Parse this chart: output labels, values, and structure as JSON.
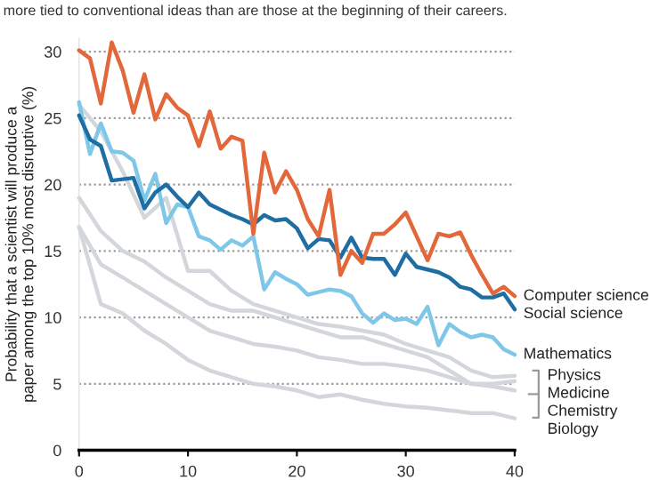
{
  "chart_data": {
    "type": "line",
    "subtitle": "more tied to conventional ideas than are those at the beginning of their careers.",
    "ylabel": "Probability that a scientist will produce a\npaper among the top 10% most disruptive (%)",
    "xlim": [
      0,
      40
    ],
    "xticks": [
      0,
      10,
      20,
      30,
      40
    ],
    "ylim": [
      0,
      31
    ],
    "yticks": [
      0,
      5,
      10,
      15,
      20,
      25,
      30
    ],
    "grid": "y",
    "legend": false,
    "marker": "none",
    "line_style": "solid",
    "series": [
      {
        "name": "Physics",
        "color": "#d3d7dc",
        "x": [
          0,
          2,
          4,
          6,
          8,
          10,
          12,
          14,
          16,
          18,
          20,
          22,
          24,
          26,
          28,
          30,
          32,
          34,
          36,
          38,
          40
        ],
        "values": [
          26,
          24,
          21,
          17.5,
          19,
          13.5,
          13.5,
          12,
          11,
          10.5,
          10,
          9.5,
          9.3,
          9,
          8.7,
          8,
          7.5,
          7,
          6,
          5.5,
          5.6
        ]
      },
      {
        "name": "Medicine",
        "color": "#d3d7dc",
        "x": [
          0,
          2,
          4,
          6,
          8,
          10,
          12,
          14,
          16,
          18,
          20,
          22,
          24,
          26,
          28,
          30,
          32,
          34,
          36,
          38,
          40
        ],
        "values": [
          19,
          16.5,
          15,
          14.2,
          13,
          12,
          11,
          10.5,
          10.5,
          10,
          9.5,
          9,
          8.5,
          8.5,
          8,
          7.5,
          7,
          6,
          5,
          5,
          5.2
        ]
      },
      {
        "name": "Chemistry",
        "color": "#d3d7dc",
        "x": [
          0,
          2,
          4,
          6,
          8,
          10,
          12,
          14,
          16,
          18,
          20,
          22,
          24,
          26,
          28,
          30,
          32,
          34,
          36,
          38,
          40
        ],
        "values": [
          16.8,
          14,
          13,
          12,
          11,
          10,
          9,
          8.5,
          8,
          7.8,
          7.5,
          7,
          6.8,
          6.5,
          6.5,
          6.3,
          6,
          5.5,
          5,
          4.8,
          4.5
        ]
      },
      {
        "name": "Biology",
        "color": "#d3d7dc",
        "x": [
          0,
          2,
          4,
          6,
          8,
          10,
          12,
          14,
          16,
          18,
          20,
          22,
          24,
          26,
          28,
          30,
          32,
          34,
          36,
          38,
          40
        ],
        "values": [
          16.8,
          11,
          10.3,
          9,
          8,
          6.8,
          6,
          5.5,
          5,
          4.8,
          4.5,
          4,
          4.2,
          3.8,
          3.5,
          3.3,
          3.2,
          3,
          2.8,
          2.8,
          2.4
        ]
      },
      {
        "name": "Mathematics",
        "color": "#7fc7e8",
        "x": [
          0,
          1,
          2,
          3,
          4,
          5,
          6,
          7,
          8,
          9,
          10,
          11,
          12,
          13,
          14,
          15,
          16,
          17,
          18,
          19,
          20,
          21,
          22,
          23,
          24,
          25,
          26,
          27,
          28,
          29,
          30,
          31,
          32,
          33,
          34,
          35,
          36,
          37,
          38,
          39,
          40
        ],
        "values": [
          26.2,
          22.3,
          24.6,
          22.5,
          22.4,
          21.8,
          18.8,
          20.8,
          17.1,
          18.5,
          18.3,
          16.1,
          15.8,
          15.1,
          15.8,
          15.4,
          16.1,
          12.1,
          13.4,
          12.9,
          12.5,
          11.7,
          11.9,
          12.1,
          12.0,
          11.6,
          10.3,
          9.6,
          10.3,
          9.8,
          9.9,
          9.5,
          10.8,
          7.9,
          9.5,
          8.9,
          8.5,
          8.7,
          8.5,
          7.6,
          7.2
        ]
      },
      {
        "name": "Social science",
        "color": "#1f6ea3",
        "x": [
          0,
          1,
          2,
          3,
          4,
          5,
          6,
          7,
          8,
          9,
          10,
          11,
          12,
          13,
          14,
          15,
          16,
          17,
          18,
          19,
          20,
          21,
          22,
          23,
          24,
          25,
          26,
          27,
          28,
          29,
          30,
          31,
          32,
          33,
          34,
          35,
          36,
          37,
          38,
          39,
          40
        ],
        "values": [
          25.2,
          23.4,
          22.9,
          20.3,
          20.4,
          20.5,
          18.2,
          19.4,
          20.0,
          19.1,
          18.3,
          19.4,
          18.5,
          18.1,
          17.7,
          17.4,
          17.0,
          17.7,
          17.3,
          17.4,
          16.7,
          15.2,
          15.9,
          15.8,
          14.5,
          16.0,
          14.5,
          14.4,
          14.4,
          13.2,
          14.8,
          13.8,
          13.6,
          13.4,
          13.0,
          12.3,
          12.1,
          11.5,
          11.5,
          11.8,
          10.6
        ]
      },
      {
        "name": "Computer science",
        "color": "#e2673a",
        "x": [
          0,
          1,
          2,
          3,
          4,
          5,
          6,
          7,
          8,
          9,
          10,
          11,
          12,
          13,
          14,
          15,
          16,
          17,
          18,
          19,
          20,
          21,
          22,
          23,
          24,
          25,
          26,
          27,
          28,
          29,
          30,
          31,
          32,
          33,
          34,
          35,
          36,
          37,
          38,
          39,
          40
        ],
        "values": [
          30.1,
          29.5,
          26.1,
          30.7,
          28.6,
          25.4,
          28.3,
          24.9,
          26.8,
          25.8,
          25.2,
          22.9,
          25.5,
          22.7,
          23.6,
          23.3,
          16.3,
          22.4,
          19.4,
          21.0,
          19.6,
          17.4,
          16.1,
          19.6,
          13.2,
          15.0,
          14.1,
          16.3,
          16.3,
          17.0,
          17.9,
          16.1,
          14.3,
          16.3,
          16.1,
          16.4,
          14.7,
          13.2,
          11.8,
          12.3,
          11.6
        ]
      }
    ]
  }
}
